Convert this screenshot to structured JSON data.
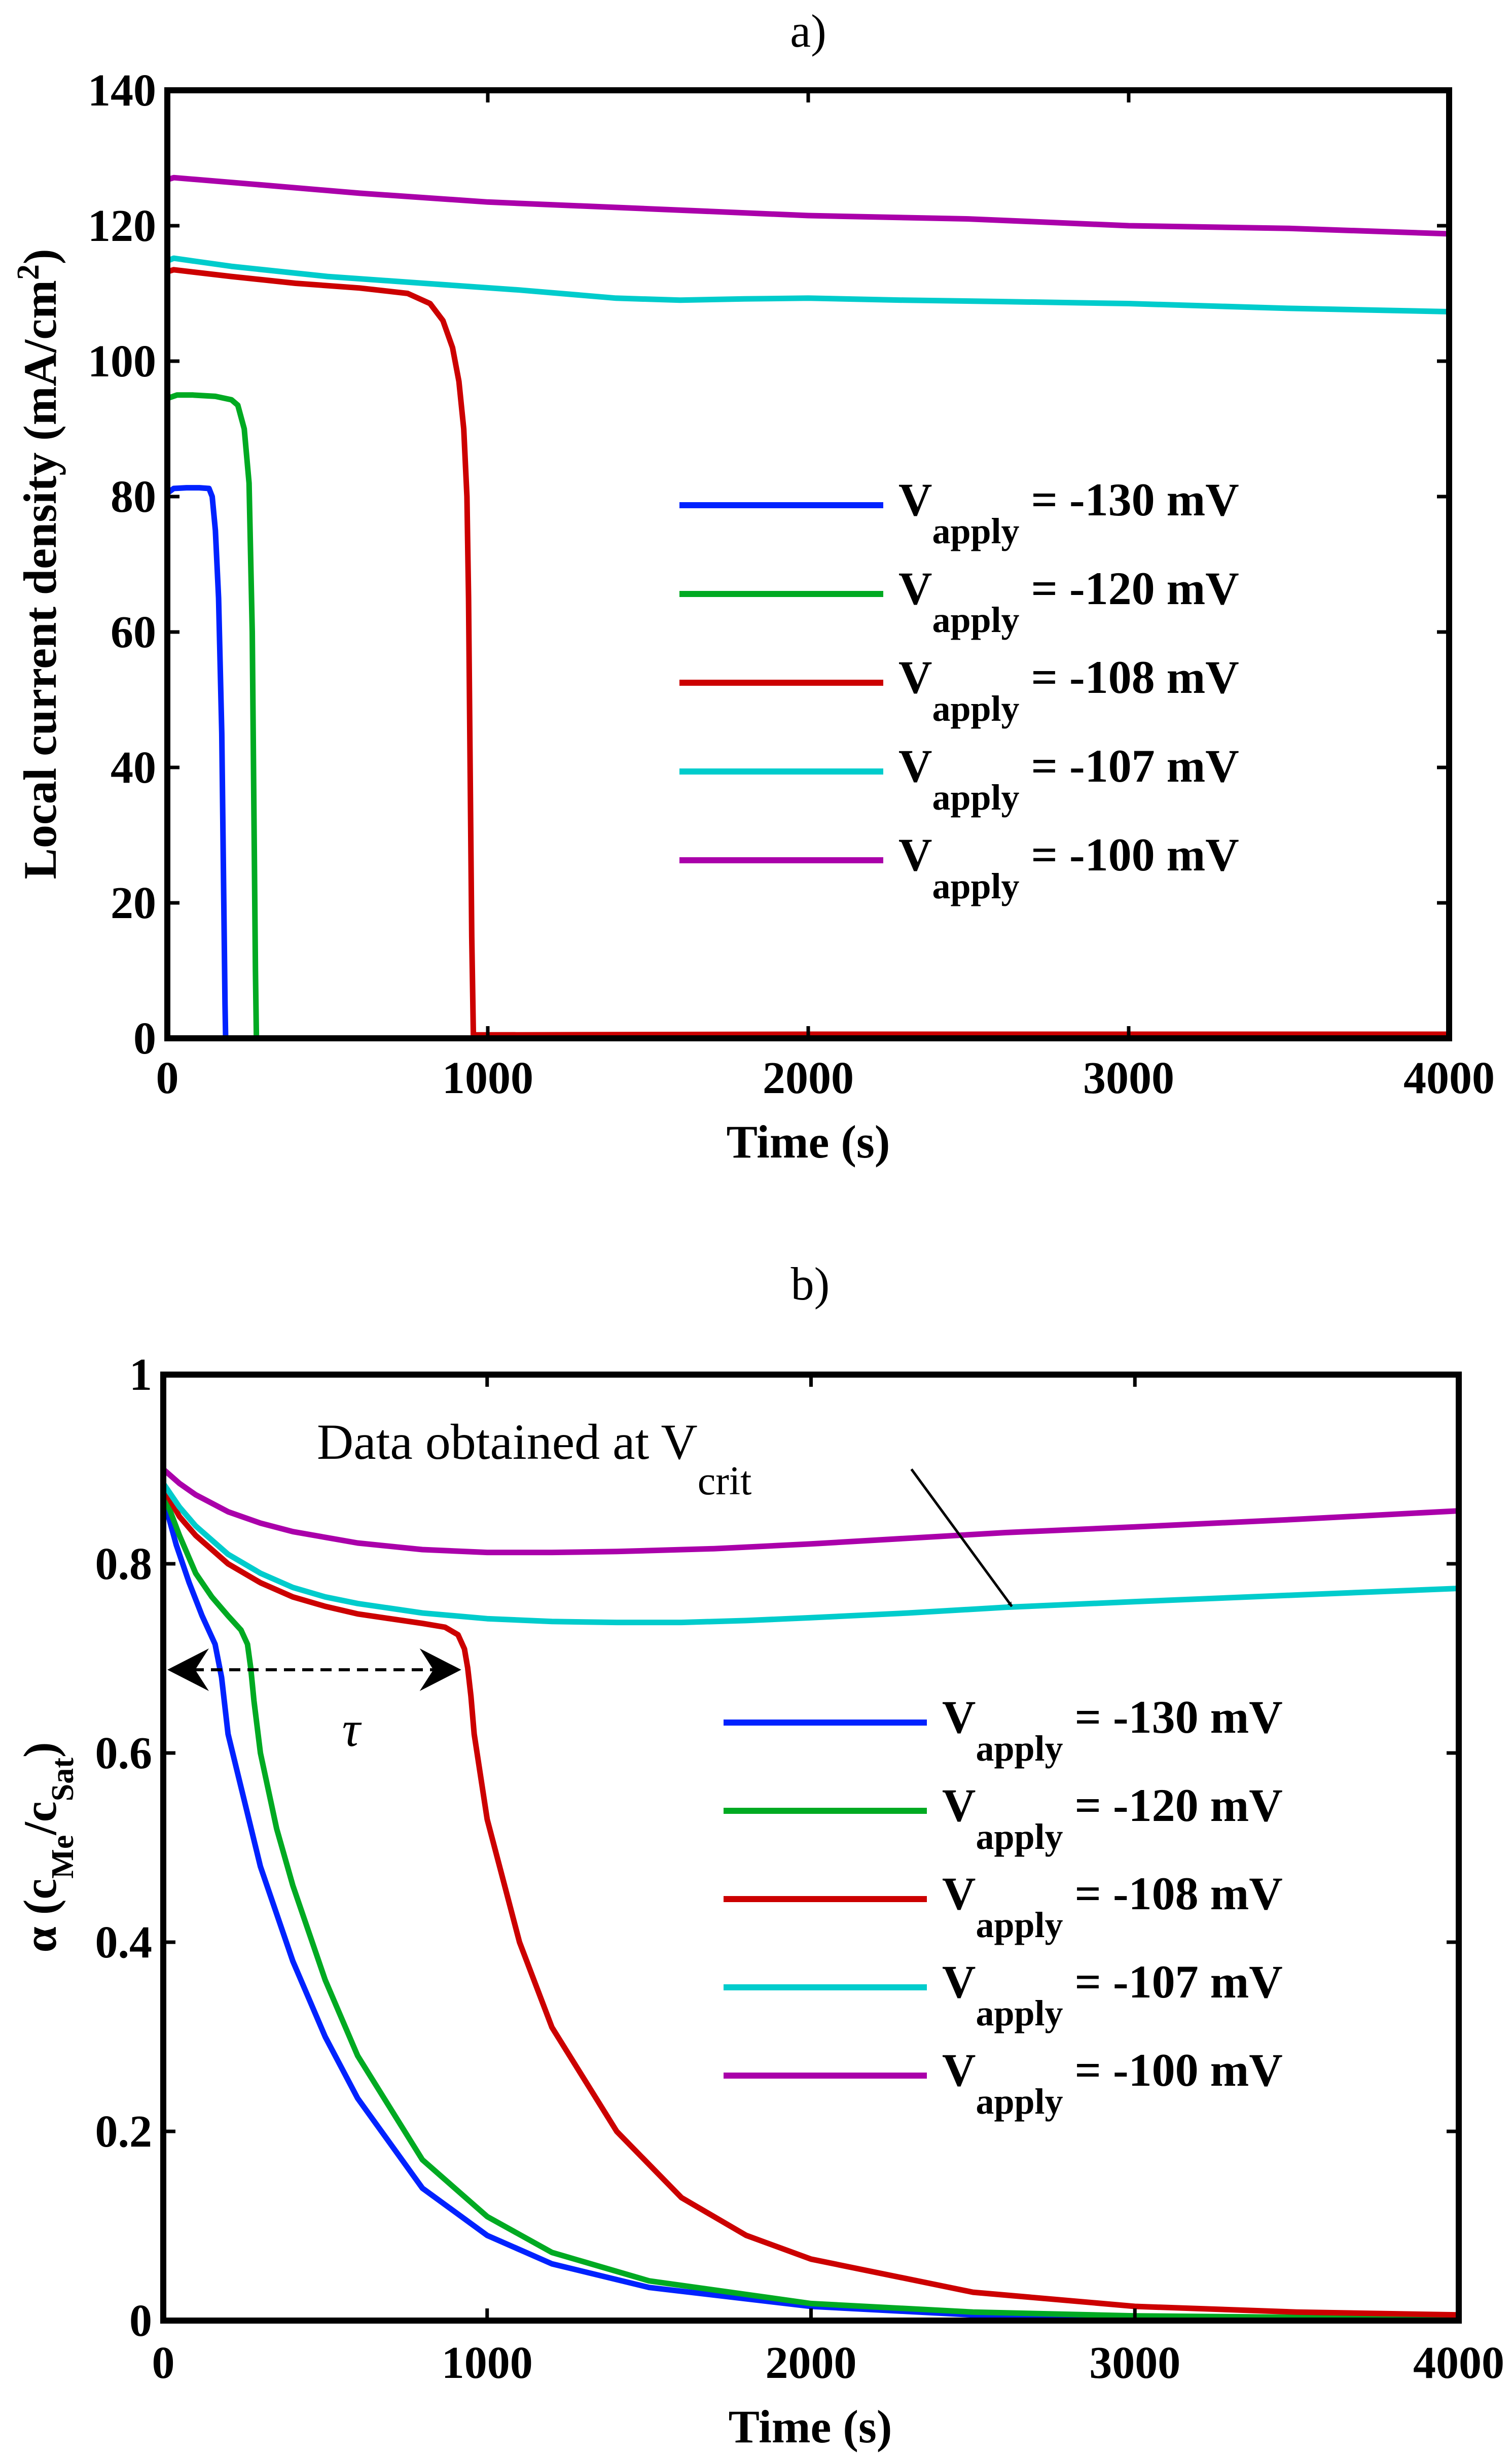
{
  "chart_data": [
    {
      "id": "a",
      "type": "line",
      "title": "a)",
      "xlabel": "Time (s)",
      "ylabel": "Local current density (mA/cm",
      "ylabel_sup": "2",
      "ylabel_close": ")",
      "xlim": [
        0,
        4000
      ],
      "ylim": [
        0,
        140
      ],
      "xticks": [
        0,
        1000,
        2000,
        3000,
        4000
      ],
      "xtick_labels": [
        "0",
        "1000",
        "2000",
        "3000",
        "4000"
      ],
      "yticks": [
        0,
        20,
        40,
        60,
        80,
        100,
        120,
        140
      ],
      "ytick_labels": [
        "0",
        "20",
        "40",
        "60",
        "80",
        "100",
        "120",
        "140"
      ],
      "grid": false,
      "legend_position": "center-right",
      "series": [
        {
          "name": "V_apply = -130 mV",
          "label_main": "V",
          "label_sub": "apply",
          "label_rest": " = -130 mV",
          "color": "#0022ff",
          "x": [
            0,
            20,
            60,
            100,
            130,
            140,
            150,
            160,
            170,
            175,
            180,
            182,
            4000
          ],
          "y": [
            80.5,
            81.2,
            81.3,
            81.3,
            81.2,
            80,
            75,
            65,
            45,
            25,
            5,
            0,
            0
          ]
        },
        {
          "name": "V_apply = -120 mV",
          "label_main": "V",
          "label_sub": "apply",
          "label_rest": " = -120 mV",
          "color": "#00aa22",
          "x": [
            0,
            30,
            80,
            150,
            200,
            220,
            240,
            255,
            265,
            270,
            275,
            278,
            4000
          ],
          "y": [
            94.5,
            95,
            95,
            94.8,
            94.3,
            93.5,
            90,
            82,
            60,
            35,
            10,
            0,
            0
          ]
        },
        {
          "name": "V_apply = -108 mV",
          "label_main": "V",
          "label_sub": "apply",
          "label_rest": " = -108 mV",
          "color": "#cc0000",
          "x": [
            0,
            20,
            200,
            400,
            600,
            750,
            820,
            860,
            890,
            910,
            925,
            935,
            940,
            945,
            950,
            955,
            1000,
            2000,
            3000,
            4000
          ],
          "y": [
            113.2,
            113.5,
            112.5,
            111.5,
            110.8,
            110,
            108.5,
            106,
            102,
            97,
            90,
            80,
            65,
            40,
            15,
            0.5,
            0.5,
            0.6,
            0.6,
            0.6
          ]
        },
        {
          "name": "V_apply = -107 mV",
          "label_main": "V",
          "label_sub": "apply",
          "label_rest": " = -107 mV",
          "color": "#00cccc",
          "x": [
            0,
            20,
            200,
            500,
            800,
            1100,
            1400,
            1600,
            1800,
            2000,
            2300,
            2600,
            3000,
            3500,
            4000
          ],
          "y": [
            114.8,
            115.2,
            114,
            112.5,
            111.5,
            110.5,
            109.3,
            109,
            109.2,
            109.3,
            109,
            108.8,
            108.5,
            107.8,
            107.3
          ]
        },
        {
          "name": "V_apply = -100 mV",
          "label_main": "V",
          "label_sub": "apply",
          "label_rest": " = -100 mV",
          "color": "#aa00aa",
          "x": [
            0,
            20,
            300,
            600,
            1000,
            1500,
            2000,
            2500,
            3000,
            3500,
            4000
          ],
          "y": [
            126.8,
            127.1,
            126,
            124.8,
            123.5,
            122.5,
            121.5,
            121,
            120,
            119.6,
            118.8
          ]
        }
      ]
    },
    {
      "id": "b",
      "type": "line",
      "title": "b)",
      "xlabel": "Time (s)",
      "ylabel_alpha": "α (c",
      "ylabel_sub1": "Me",
      "ylabel_mid": "/c",
      "ylabel_sub2": "Sat",
      "ylabel_close": ")",
      "xlim": [
        0,
        4000
      ],
      "ylim": [
        0,
        1
      ],
      "xticks": [
        0,
        1000,
        2000,
        3000,
        4000
      ],
      "xtick_labels": [
        "0",
        "1000",
        "2000",
        "3000",
        "4000"
      ],
      "yticks": [
        0,
        0.2,
        0.4,
        0.6,
        0.8,
        1
      ],
      "ytick_labels": [
        "0",
        "0.2",
        "0.4",
        "0.6",
        "0.8",
        "1"
      ],
      "grid": false,
      "legend_position": "center-right",
      "annotations": {
        "vcrit_text": "Data obtained at V",
        "vcrit_sub": "crit",
        "vcrit_arrow_tip": {
          "x": 2620,
          "y": 0.755
        },
        "vcrit_arrow_tail": {
          "x": 2310,
          "y": 0.9
        },
        "tau_label": "τ",
        "tau_arrow": {
          "x_start": 0,
          "x_end": 920,
          "y": 0.688
        }
      },
      "series": [
        {
          "name": "V_apply = -130 mV",
          "label_main": "V",
          "label_sub": "apply",
          "label_rest": " = -130 mV",
          "color": "#0022ff",
          "x": [
            0,
            40,
            80,
            120,
            160,
            180,
            200,
            250,
            300,
            400,
            500,
            600,
            800,
            1000,
            1200,
            1500,
            2000,
            2500,
            3000,
            4000
          ],
          "y": [
            0.87,
            0.82,
            0.78,
            0.745,
            0.715,
            0.68,
            0.62,
            0.55,
            0.48,
            0.38,
            0.3,
            0.235,
            0.14,
            0.09,
            0.06,
            0.035,
            0.015,
            0.006,
            0.003,
            0.001
          ]
        },
        {
          "name": "V_apply = -120 mV",
          "label_main": "V",
          "label_sub": "apply",
          "label_rest": " = -120 mV",
          "color": "#00aa22",
          "x": [
            0,
            50,
            100,
            150,
            200,
            240,
            260,
            270,
            280,
            300,
            350,
            400,
            500,
            600,
            800,
            1000,
            1200,
            1500,
            2000,
            2500,
            3000,
            4000
          ],
          "y": [
            0.875,
            0.83,
            0.79,
            0.765,
            0.745,
            0.73,
            0.715,
            0.69,
            0.655,
            0.6,
            0.52,
            0.46,
            0.36,
            0.28,
            0.17,
            0.11,
            0.072,
            0.042,
            0.018,
            0.009,
            0.005,
            0.002
          ]
        },
        {
          "name": "V_apply = -108 mV",
          "label_main": "V",
          "label_sub": "apply",
          "label_rest": " = -108 mV",
          "color": "#cc0000",
          "x": [
            0,
            50,
            100,
            200,
            300,
            400,
            500,
            600,
            700,
            800,
            870,
            910,
            930,
            940,
            950,
            960,
            1000,
            1100,
            1200,
            1400,
            1600,
            1800,
            2000,
            2500,
            3000,
            3500,
            4000
          ],
          "y": [
            0.88,
            0.85,
            0.83,
            0.8,
            0.78,
            0.765,
            0.755,
            0.747,
            0.742,
            0.737,
            0.733,
            0.725,
            0.71,
            0.69,
            0.66,
            0.62,
            0.53,
            0.4,
            0.31,
            0.2,
            0.13,
            0.09,
            0.065,
            0.03,
            0.015,
            0.009,
            0.006
          ]
        },
        {
          "name": "V_apply = -107 mV",
          "label_main": "V",
          "label_sub": "apply",
          "label_rest": " = -107 mV",
          "color": "#00cccc",
          "x": [
            0,
            50,
            100,
            200,
            300,
            400,
            500,
            600,
            800,
            1000,
            1200,
            1400,
            1600,
            1800,
            2000,
            2300,
            2600,
            3000,
            3500,
            4000
          ],
          "y": [
            0.885,
            0.86,
            0.84,
            0.81,
            0.79,
            0.775,
            0.765,
            0.758,
            0.748,
            0.742,
            0.739,
            0.738,
            0.738,
            0.74,
            0.743,
            0.748,
            0.754,
            0.76,
            0.767,
            0.774
          ]
        },
        {
          "name": "V_apply = -100 mV",
          "label_main": "V",
          "label_sub": "apply",
          "label_rest": " = -100 mV",
          "color": "#aa00aa",
          "x": [
            0,
            50,
            100,
            200,
            300,
            400,
            600,
            800,
            1000,
            1200,
            1400,
            1700,
            2000,
            2300,
            2600,
            3000,
            3500,
            4000
          ],
          "y": [
            0.9,
            0.885,
            0.873,
            0.855,
            0.843,
            0.834,
            0.822,
            0.815,
            0.812,
            0.812,
            0.813,
            0.816,
            0.821,
            0.827,
            0.833,
            0.839,
            0.847,
            0.856
          ]
        }
      ]
    }
  ]
}
